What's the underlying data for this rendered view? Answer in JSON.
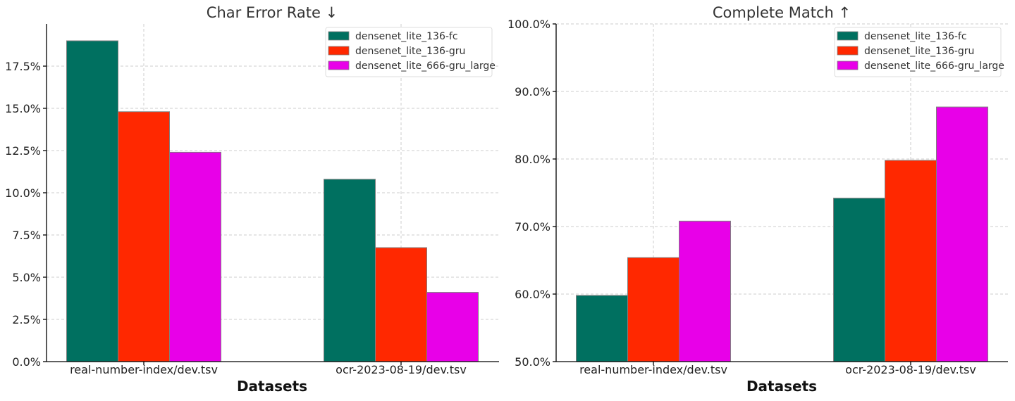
{
  "chart_data": [
    {
      "type": "bar",
      "title": "Char Error Rate ↓",
      "xlabel": "Datasets",
      "ylabel": "",
      "categories": [
        "real-number-index/dev.tsv",
        "ocr-2023-08-19/dev.tsv"
      ],
      "series": [
        {
          "name": "densenet_lite_136-fc",
          "color": "#007060",
          "values": [
            0.19,
            0.108
          ]
        },
        {
          "name": "densenet_lite_136-gru",
          "color": "#ff2800",
          "values": [
            0.148,
            0.0675
          ]
        },
        {
          "name": "densenet_lite_666-gru_large",
          "color": "#e800e8",
          "values": [
            0.124,
            0.041
          ]
        }
      ],
      "ylim": [
        0,
        0.2
      ],
      "yticks": [
        0,
        0.025,
        0.05,
        0.075,
        0.1,
        0.125,
        0.15,
        0.175
      ],
      "ytick_labels": [
        "0.0%",
        "2.5%",
        "5.0%",
        "7.5%",
        "10.0%",
        "12.5%",
        "15.0%",
        "17.5%"
      ],
      "grid": true,
      "legend": "top-right"
    },
    {
      "type": "bar",
      "title": "Complete Match ↑",
      "xlabel": "Datasets",
      "ylabel": "",
      "categories": [
        "real-number-index/dev.tsv",
        "ocr-2023-08-19/dev.tsv"
      ],
      "series": [
        {
          "name": "densenet_lite_136-fc",
          "color": "#007060",
          "values": [
            0.598,
            0.742
          ]
        },
        {
          "name": "densenet_lite_136-gru",
          "color": "#ff2800",
          "values": [
            0.654,
            0.798
          ]
        },
        {
          "name": "densenet_lite_666-gru_large",
          "color": "#e800e8",
          "values": [
            0.708,
            0.877
          ]
        }
      ],
      "ylim": [
        0.5,
        1.0
      ],
      "yticks": [
        0.5,
        0.6,
        0.7,
        0.8,
        0.9,
        1.0
      ],
      "ytick_labels": [
        "50.0%",
        "60.0%",
        "70.0%",
        "80.0%",
        "90.0%",
        "100.0%"
      ],
      "grid": true,
      "legend": "top-right"
    }
  ]
}
